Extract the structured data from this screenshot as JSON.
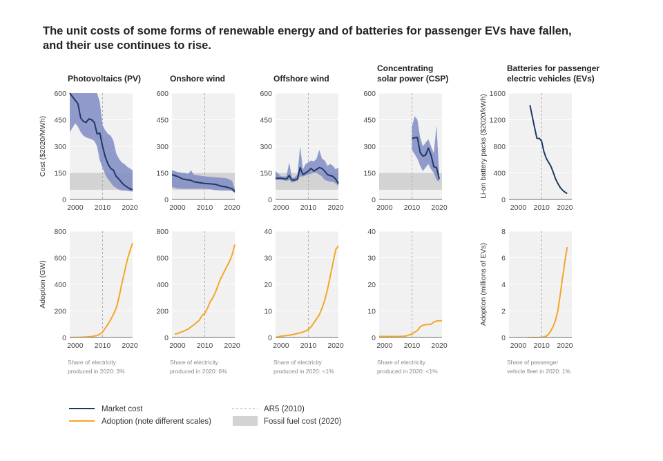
{
  "title": [
    "The unit costs of some forms of renewable energy and of batteries for passenger EVs have fallen,",
    "and their use continues to rise."
  ],
  "colors": {
    "market": "#1f3864",
    "band": "#7f8cc4",
    "adoption": "#f5a623",
    "fossil": "#d3d3d3",
    "plot_bg": "#f1f1f1",
    "ar5": "#aaaaaa"
  },
  "legend": {
    "market_cost": "Market cost",
    "adoption": "Adoption (note different scales)",
    "ar5": "AR5 (2010)",
    "fossil": "Fossil fuel cost (2020)"
  },
  "chart_data": [
    {
      "type": "line",
      "title": [
        "Photovoltaics (PV)"
      ],
      "cost": {
        "ylabel": "Cost ($2020/MWh)",
        "ylim": [
          0,
          600
        ],
        "yticks": [
          "0",
          "150",
          "300",
          "450",
          "600"
        ],
        "fossil_range": [
          55,
          150
        ],
        "x": [
          1998,
          2000,
          2001,
          2002,
          2003,
          2004,
          2005,
          2006,
          2007,
          2008,
          2009,
          2010,
          2011,
          2012,
          2013,
          2014,
          2015,
          2016,
          2017,
          2018,
          2019,
          2020,
          2021
        ],
        "market": [
          600,
          560,
          540,
          460,
          440,
          435,
          455,
          450,
          435,
          370,
          375,
          300,
          240,
          200,
          175,
          165,
          130,
          115,
          95,
          80,
          70,
          60,
          55
        ],
        "upper": [
          600,
          600,
          600,
          600,
          600,
          600,
          600,
          600,
          600,
          600,
          550,
          420,
          390,
          370,
          360,
          330,
          260,
          230,
          210,
          200,
          185,
          175,
          165
        ],
        "lower": [
          380,
          430,
          410,
          380,
          360,
          350,
          345,
          340,
          330,
          300,
          220,
          180,
          140,
          115,
          95,
          75,
          65,
          55,
          50,
          50,
          48,
          46,
          45
        ]
      },
      "adoption": {
        "ylabel": "Adoption (GW)",
        "ylim": [
          0,
          800
        ],
        "yticks": [
          "0",
          "200",
          "400",
          "600",
          "800"
        ],
        "x": [
          1998,
          2000,
          2002,
          2004,
          2006,
          2008,
          2009,
          2010,
          2011,
          2012,
          2013,
          2014,
          2015,
          2016,
          2017,
          2018,
          2019,
          2020,
          2021
        ],
        "values": [
          0,
          1,
          2,
          4,
          7,
          15,
          25,
          40,
          70,
          100,
          135,
          175,
          220,
          300,
          400,
          490,
          580,
          650,
          710
        ]
      },
      "xticks": [
        "2000",
        "2010",
        "2020"
      ],
      "note": [
        "Share of electricity",
        "produced in 2020: 3%"
      ]
    },
    {
      "type": "line",
      "title": [
        "Onshore wind"
      ],
      "cost": {
        "ylabel": "",
        "ylim": [
          0,
          600
        ],
        "yticks": [
          "0",
          "150",
          "300",
          "450",
          "600"
        ],
        "fossil_range": [
          55,
          150
        ],
        "x": [
          1998,
          2000,
          2002,
          2004,
          2005,
          2006,
          2008,
          2010,
          2012,
          2014,
          2016,
          2018,
          2020,
          2021
        ],
        "market": [
          140,
          130,
          115,
          110,
          108,
          100,
          95,
          90,
          88,
          85,
          75,
          70,
          60,
          45
        ],
        "upper": [
          165,
          155,
          150,
          145,
          165,
          140,
          135,
          130,
          128,
          125,
          122,
          120,
          105,
          60
        ],
        "lower": [
          70,
          62,
          60,
          60,
          60,
          60,
          60,
          60,
          58,
          52,
          50,
          50,
          48,
          35
        ]
      },
      "adoption": {
        "ylabel": "",
        "ylim": [
          0,
          800
        ],
        "yticks": [
          "0",
          "200",
          "400",
          "600",
          "800"
        ],
        "x": [
          1999,
          2000,
          2002,
          2004,
          2006,
          2008,
          2009,
          2010,
          2011,
          2012,
          2013,
          2014,
          2015,
          2016,
          2017,
          2018,
          2019,
          2020,
          2021
        ],
        "values": [
          25,
          30,
          45,
          65,
          95,
          130,
          165,
          180,
          220,
          270,
          300,
          345,
          400,
          450,
          490,
          530,
          570,
          620,
          700
        ]
      },
      "xticks": [
        "2000",
        "2010",
        "2020"
      ],
      "note": [
        "Share of electricity",
        "produced in 2020: 6%"
      ]
    },
    {
      "type": "line",
      "title": [
        "Offshore wind"
      ],
      "cost": {
        "ylabel": "",
        "ylim": [
          0,
          600
        ],
        "yticks": [
          "0",
          "150",
          "300",
          "450",
          "600"
        ],
        "fossil_range": [
          55,
          150
        ],
        "x": [
          1998,
          2000,
          2002,
          2003,
          2004,
          2005,
          2006,
          2007,
          2008,
          2009,
          2010,
          2011,
          2012,
          2013,
          2014,
          2015,
          2016,
          2017,
          2018,
          2019,
          2020,
          2021
        ],
        "market": [
          120,
          120,
          115,
          135,
          110,
          110,
          115,
          180,
          140,
          150,
          160,
          175,
          160,
          170,
          180,
          175,
          160,
          140,
          135,
          130,
          115,
          90
        ],
        "upper": [
          160,
          130,
          130,
          210,
          120,
          125,
          140,
          300,
          170,
          200,
          210,
          220,
          215,
          230,
          280,
          230,
          220,
          190,
          200,
          190,
          170,
          180
        ],
        "lower": [
          110,
          110,
          105,
          110,
          95,
          100,
          105,
          130,
          130,
          135,
          140,
          145,
          150,
          150,
          140,
          130,
          110,
          105,
          100,
          100,
          90,
          75
        ]
      },
      "adoption": {
        "ylabel": "",
        "ylim": [
          0,
          40
        ],
        "yticks": [
          "0",
          "10",
          "20",
          "30",
          "40"
        ],
        "x": [
          1998,
          2000,
          2002,
          2004,
          2006,
          2008,
          2010,
          2011,
          2012,
          2013,
          2014,
          2015,
          2016,
          2017,
          2018,
          2019,
          2020,
          2021
        ],
        "values": [
          0,
          0.5,
          0.7,
          1,
          1.5,
          2,
          3,
          4,
          5.5,
          7,
          8.5,
          11,
          14,
          18,
          23,
          28,
          33,
          34.5
        ]
      },
      "xticks": [
        "2000",
        "2010",
        "2020"
      ],
      "note": [
        "Share of electricity",
        "produced in 2020: <1%"
      ]
    },
    {
      "type": "line",
      "title": [
        "Concentrating",
        "solar power (CSP)"
      ],
      "cost": {
        "ylabel": "",
        "ylim": [
          0,
          600
        ],
        "yticks": [
          "0",
          "150",
          "300",
          "450",
          "600"
        ],
        "fossil_range": [
          55,
          150
        ],
        "x": [
          2010,
          2011,
          2012,
          2013,
          2014,
          2015,
          2016,
          2017,
          2018,
          2019,
          2020
        ],
        "market": [
          345,
          348,
          350,
          265,
          245,
          250,
          290,
          250,
          185,
          180,
          115
        ],
        "upper": [
          410,
          470,
          450,
          350,
          300,
          320,
          340,
          300,
          260,
          420,
          130
        ],
        "lower": [
          280,
          255,
          230,
          190,
          160,
          180,
          200,
          170,
          150,
          110,
          100
        ]
      },
      "adoption": {
        "ylabel": "",
        "ylim": [
          0,
          40
        ],
        "yticks": [
          "0",
          "10",
          "20",
          "30",
          "40"
        ],
        "x": [
          1998,
          2006,
          2007,
          2008,
          2009,
          2010,
          2011,
          2012,
          2013,
          2014,
          2015,
          2016,
          2017,
          2018,
          2019,
          2020,
          2021
        ],
        "values": [
          0.4,
          0.4,
          0.5,
          0.6,
          1,
          1.3,
          2,
          2.6,
          4,
          4.6,
          4.8,
          4.9,
          5.0,
          5.8,
          6.2,
          6.3,
          6.3
        ]
      },
      "xticks": [
        "2000",
        "2010",
        "2020"
      ],
      "note": [
        "Share of electricity",
        "produced in 2020: <1%"
      ]
    },
    {
      "type": "line",
      "title": [
        "Batteries for passenger",
        "electric vehicles (EVs)"
      ],
      "cost": {
        "ylabel": "Li-on battery packs ($2020/kWh)",
        "ylim": [
          0,
          1600
        ],
        "yticks": [
          "0",
          "400",
          "800",
          "1200",
          "1600"
        ],
        "x": [
          2005,
          2006,
          2007,
          2008,
          2009,
          2010,
          2011,
          2012,
          2013,
          2014,
          2015,
          2016,
          2017,
          2018,
          2019,
          2020,
          2021
        ],
        "market": [
          1420,
          1250,
          1080,
          920,
          920,
          880,
          720,
          620,
          560,
          500,
          410,
          310,
          240,
          180,
          140,
          110,
          90
        ]
      },
      "adoption": {
        "ylabel": "Adoption (millions of EVs)",
        "ylim": [
          0,
          8
        ],
        "yticks": [
          "0",
          "2",
          "4",
          "6",
          "8"
        ],
        "x": [
          2004,
          2008,
          2010,
          2011,
          2012,
          2013,
          2014,
          2015,
          2016,
          2017,
          2018,
          2019,
          2020,
          2021
        ],
        "values": [
          0,
          0,
          0.01,
          0.05,
          0.1,
          0.25,
          0.5,
          0.85,
          1.3,
          2,
          3.2,
          4.5,
          5.7,
          6.8
        ]
      },
      "xticks": [
        "2000",
        "2010",
        "2020"
      ],
      "note": [
        "Share of passenger",
        "vehicle fleet in 2020: 1%"
      ]
    }
  ]
}
